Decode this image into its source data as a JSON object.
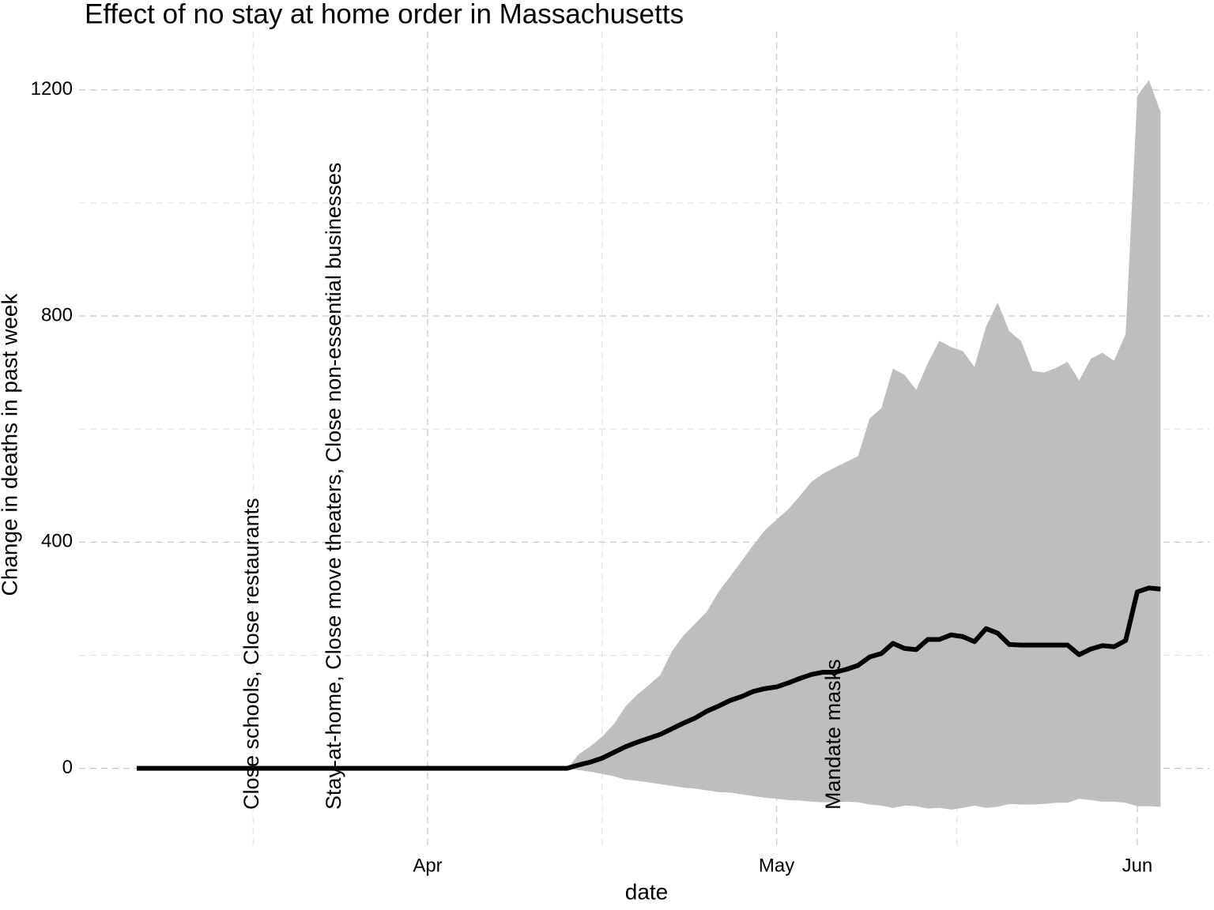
{
  "chart_data": {
    "type": "line",
    "title": "Effect of no stay at home order in Massachusetts",
    "x_label": "date",
    "y_label": "Change in deaths in past week",
    "categories": [
      null,
      null,
      null,
      null,
      null,
      null,
      null,
      null,
      null,
      null,
      null,
      null,
      null,
      null,
      null,
      null,
      null,
      null,
      null,
      null,
      null,
      null,
      null,
      null,
      null,
      "Apr",
      null,
      null,
      null,
      null,
      null,
      null,
      null,
      null,
      null,
      null,
      null,
      null,
      null,
      null,
      null,
      null,
      null,
      null,
      null,
      null,
      null,
      null,
      null,
      null,
      null,
      null,
      null,
      null,
      null,
      "May",
      null,
      null,
      null,
      null,
      null,
      null,
      null,
      null,
      null,
      null,
      null,
      null,
      null,
      null,
      null,
      null,
      null,
      null,
      null,
      null,
      null,
      null,
      null,
      null,
      null,
      null,
      null,
      null,
      null,
      null,
      "Jun",
      null,
      null
    ],
    "values": [
      0,
      0,
      0,
      0,
      0,
      0,
      0,
      0,
      0,
      0,
      0,
      0,
      0,
      0,
      0,
      0,
      0,
      0,
      0,
      0,
      0,
      0,
      0,
      0,
      0,
      0,
      0,
      0,
      0,
      0,
      0,
      0,
      0,
      0,
      0,
      0,
      0,
      0,
      6,
      11,
      18,
      28,
      38,
      46,
      53,
      60,
      70,
      80,
      89,
      101,
      110,
      120,
      127,
      136,
      141,
      144,
      151,
      159,
      166,
      170,
      170,
      175,
      182,
      197,
      203,
      221,
      212,
      210,
      228,
      228,
      236,
      233,
      224,
      247,
      239,
      219,
      218,
      218,
      218,
      218,
      218,
      201,
      211,
      217,
      215,
      226,
      312,
      319,
      317
    ],
    "band": {
      "lower": [
        null,
        null,
        null,
        null,
        null,
        null,
        null,
        null,
        null,
        null,
        null,
        null,
        null,
        null,
        null,
        null,
        null,
        null,
        null,
        null,
        null,
        null,
        null,
        null,
        null,
        null,
        null,
        null,
        null,
        null,
        null,
        null,
        null,
        null,
        null,
        null,
        null,
        0,
        -3,
        -6,
        -10,
        -14,
        -20,
        -22,
        -25,
        -28,
        -31,
        -34,
        -36,
        -39,
        -42,
        -43,
        -46,
        -49,
        -52,
        -54,
        -56,
        -57,
        -59,
        -60,
        -60,
        -59,
        -60,
        -64,
        -66,
        -70,
        -66,
        -67,
        -71,
        -70,
        -73,
        -70,
        -66,
        -70,
        -68,
        -63,
        -64,
        -64,
        -63,
        -61,
        -61,
        -54,
        -56,
        -59,
        -59,
        -61,
        -67,
        -67,
        -68
      ],
      "upper": [
        null,
        null,
        null,
        null,
        null,
        null,
        null,
        null,
        null,
        null,
        null,
        null,
        null,
        null,
        null,
        null,
        null,
        null,
        null,
        null,
        null,
        null,
        null,
        null,
        null,
        null,
        null,
        null,
        null,
        null,
        null,
        null,
        null,
        null,
        null,
        null,
        null,
        0,
        25,
        39,
        56,
        78,
        109,
        130,
        147,
        165,
        207,
        235,
        256,
        277,
        312,
        339,
        367,
        395,
        421,
        440,
        458,
        482,
        507,
        521,
        532,
        542,
        552,
        619,
        637,
        707,
        696,
        669,
        717,
        756,
        745,
        738,
        710,
        781,
        824,
        773,
        756,
        703,
        700,
        708,
        719,
        686,
        724,
        735,
        721,
        768,
        1189,
        1217,
        1161
      ]
    },
    "color": "#000000",
    "band_color": "#bebebe",
    "annotations": [
      "Close schools, Close restaurants",
      "Stay-at-home, Close move theaters, Close non-essential businesses",
      "Mandate masks"
    ],
    "ylim": [
      -143,
      1303
    ],
    "yticks": [
      0,
      400,
      800,
      1200
    ],
    "grid": true
  }
}
